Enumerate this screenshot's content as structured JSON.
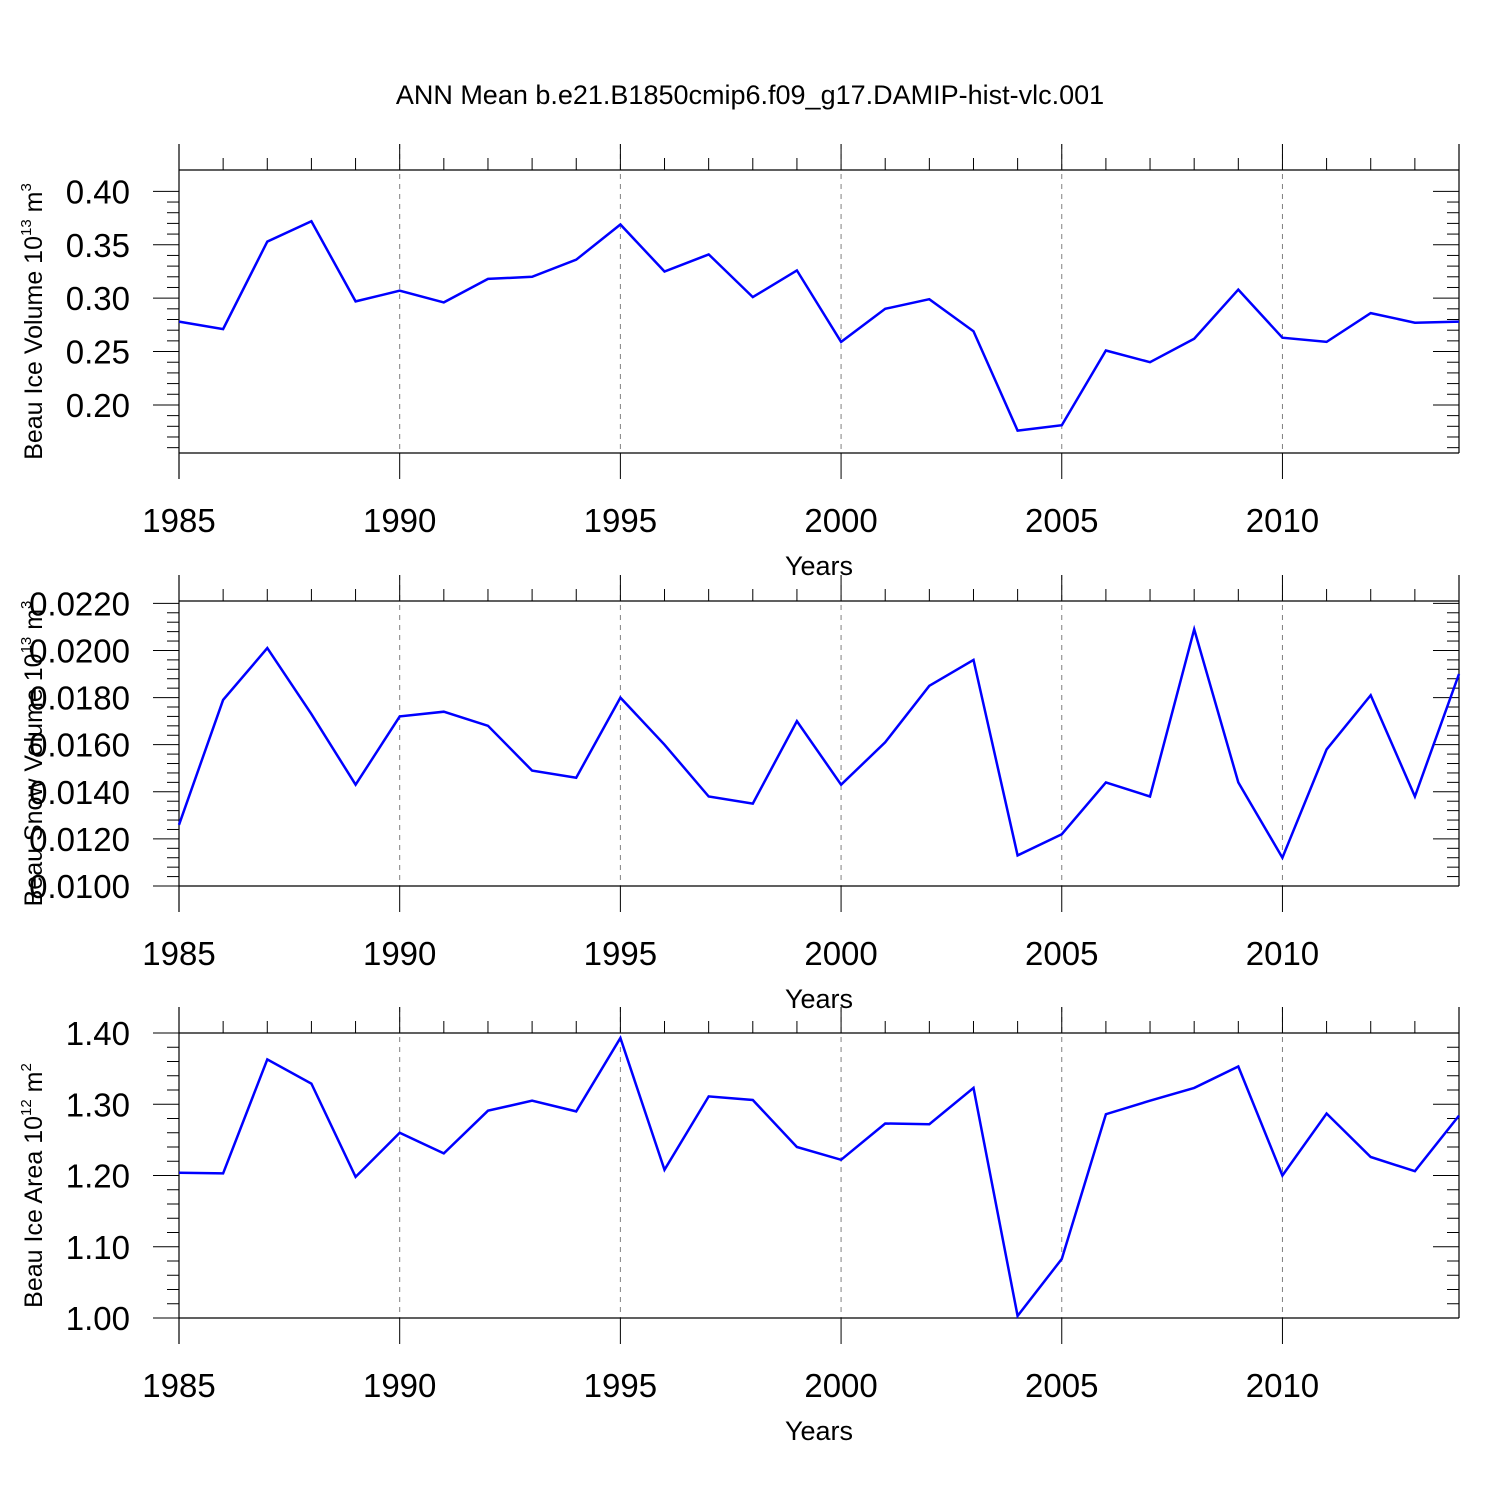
{
  "title": "ANN Mean b.e21.B1850cmip6.f09_g17.DAMIP-hist-vlc.001",
  "colors": {
    "series": "#0000ff",
    "axis": "#000000",
    "grid": "#808080"
  },
  "chart_data": [
    {
      "type": "line",
      "ylabel_main": "Beau Ice Volume 10",
      "ylabel_sup": "13",
      "ylabel_tail": " m",
      "ylabel_sup2": "3",
      "xlabel": "Years",
      "xlim": [
        1985,
        2014
      ],
      "ylim": [
        0.155,
        0.42
      ],
      "yticks": [
        "0.20",
        "0.25",
        "0.30",
        "0.35",
        "0.40"
      ],
      "xticks": [
        "1985",
        "1990",
        "1995",
        "2000",
        "2005",
        "2010"
      ],
      "x": [
        1985,
        1986,
        1987,
        1988,
        1989,
        1990,
        1991,
        1992,
        1993,
        1994,
        1995,
        1996,
        1997,
        1998,
        1999,
        2000,
        2001,
        2002,
        2003,
        2004,
        2005,
        2006,
        2007,
        2008,
        2009,
        2010,
        2011,
        2012,
        2013,
        2014
      ],
      "y": [
        0.278,
        0.271,
        0.353,
        0.372,
        0.297,
        0.307,
        0.296,
        0.318,
        0.32,
        0.336,
        0.369,
        0.325,
        0.341,
        0.301,
        0.326,
        0.259,
        0.29,
        0.299,
        0.269,
        0.176,
        0.181,
        0.251,
        0.24,
        0.262,
        0.308,
        0.263,
        0.259,
        0.286,
        0.277,
        0.278
      ]
    },
    {
      "type": "line",
      "ylabel_main": "Beau Snow Volume 10",
      "ylabel_sup": "13",
      "ylabel_tail": " m",
      "ylabel_sup2": "3",
      "xlabel": "Years",
      "xlim": [
        1985,
        2014
      ],
      "ylim": [
        0.01,
        0.0221
      ],
      "yticks": [
        "0.0100",
        "0.0120",
        "0.0140",
        "0.0160",
        "0.0180",
        "0.0200",
        "0.0220"
      ],
      "xticks": [
        "1985",
        "1990",
        "1995",
        "2000",
        "2005",
        "2010"
      ],
      "x": [
        1985,
        1986,
        1987,
        1988,
        1989,
        1990,
        1991,
        1992,
        1993,
        1994,
        1995,
        1996,
        1997,
        1998,
        1999,
        2000,
        2001,
        2002,
        2003,
        2004,
        2005,
        2006,
        2007,
        2008,
        2009,
        2010,
        2011,
        2012,
        2013,
        2014
      ],
      "y": [
        0.0126,
        0.0179,
        0.0201,
        0.0173,
        0.0143,
        0.0172,
        0.0174,
        0.0168,
        0.0149,
        0.0146,
        0.018,
        0.016,
        0.0138,
        0.0135,
        0.017,
        0.0143,
        0.0161,
        0.0185,
        0.0196,
        0.0113,
        0.0122,
        0.0144,
        0.0138,
        0.0209,
        0.0144,
        0.0112,
        0.0158,
        0.0181,
        0.0138,
        0.019
      ]
    },
    {
      "type": "line",
      "ylabel_main": "Beau Ice Area 10",
      "ylabel_sup": "12",
      "ylabel_tail": " m",
      "ylabel_sup2": "2",
      "xlabel": "Years",
      "xlim": [
        1985,
        2014
      ],
      "ylim": [
        1.0,
        1.4
      ],
      "yticks": [
        "1.00",
        "1.10",
        "1.20",
        "1.30",
        "1.40"
      ],
      "xticks": [
        "1985",
        "1990",
        "1995",
        "2000",
        "2005",
        "2010"
      ],
      "x": [
        1985,
        1986,
        1987,
        1988,
        1989,
        1990,
        1991,
        1992,
        1993,
        1994,
        1995,
        1996,
        1997,
        1998,
        1999,
        2000,
        2001,
        2002,
        2003,
        2004,
        2005,
        2006,
        2007,
        2008,
        2009,
        2010,
        2011,
        2012,
        2013,
        2014
      ],
      "y": [
        1.204,
        1.203,
        1.363,
        1.329,
        1.198,
        1.26,
        1.231,
        1.291,
        1.305,
        1.29,
        1.393,
        1.208,
        1.311,
        1.306,
        1.24,
        1.222,
        1.273,
        1.272,
        1.323,
        1.003,
        1.083,
        1.286,
        1.305,
        1.323,
        1.353,
        1.2,
        1.287,
        1.226,
        1.206,
        1.284
      ]
    }
  ]
}
